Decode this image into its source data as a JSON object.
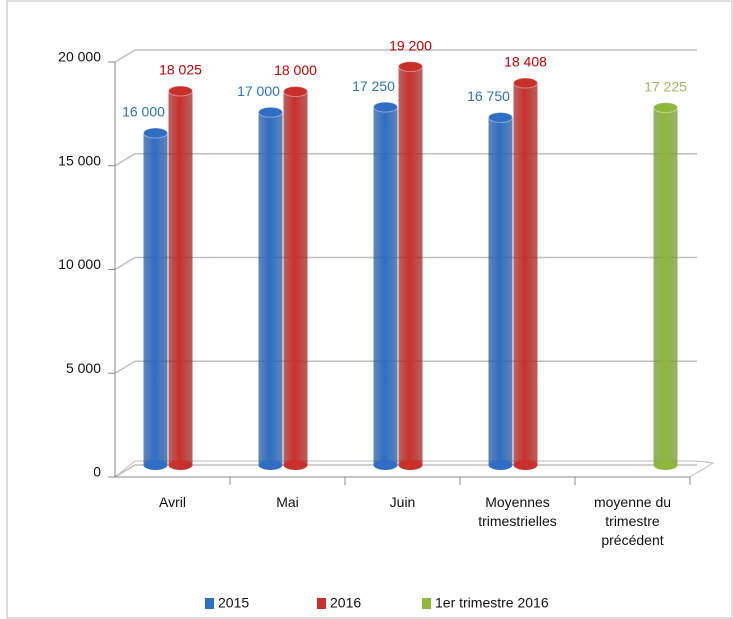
{
  "chart_data": {
    "type": "bar3d",
    "categories": [
      "Avril",
      "Mai",
      "Juin",
      "Moyennes trimestrielles",
      "moyenne du trimestre précédent"
    ],
    "series": [
      {
        "name": "2015",
        "color": "#2f6ec4",
        "label_color": "#2e75b6",
        "values": [
          16000,
          17000,
          17250,
          16750,
          null
        ],
        "value_labels": [
          "16 000",
          "17 000",
          "17 250",
          "16 750",
          null
        ]
      },
      {
        "name": "2016",
        "color": "#c8302c",
        "label_color": "#c00000",
        "values": [
          18025,
          18000,
          19200,
          18408,
          null
        ],
        "value_labels": [
          "18 025",
          "18 000",
          "19 200",
          "18 408",
          null
        ]
      },
      {
        "name": "1er trimestre 2016",
        "color": "#8db83c",
        "label_color": "#9bbb59",
        "values": [
          null,
          null,
          null,
          null,
          17225
        ],
        "value_labels": [
          null,
          null,
          null,
          null,
          "17 225"
        ]
      }
    ],
    "ylim": [
      0,
      20000
    ],
    "yticks": [
      {
        "value": 0,
        "label": "0"
      },
      {
        "value": 5000,
        "label": "5 000"
      },
      {
        "value": 10000,
        "label": "10 000"
      },
      {
        "value": 15000,
        "label": "15 000"
      },
      {
        "value": 20000,
        "label": "20 000"
      }
    ],
    "grid": true
  }
}
